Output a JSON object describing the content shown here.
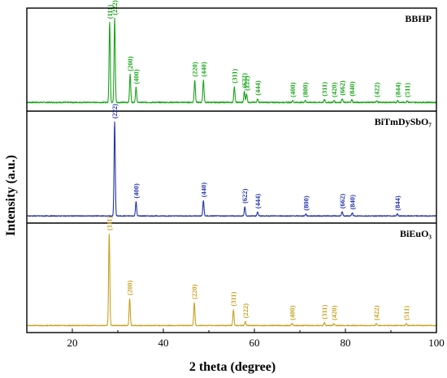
{
  "chart_data": {
    "type": "line",
    "xlabel": "2 theta (degree)",
    "ylabel": "Intensity (a.u.)",
    "xlim": [
      10,
      100
    ],
    "xticks": [
      20,
      40,
      60,
      80,
      100
    ],
    "panels": [
      {
        "name": "BBHP",
        "color": "#1aa51a",
        "baseline": 0.05,
        "noise": 0.012,
        "peaks": [
          {
            "x": 28.2,
            "y": 0.86,
            "label": "(111)"
          },
          {
            "x": 29.3,
            "y": 0.9,
            "label": "(222)"
          },
          {
            "x": 32.7,
            "y": 0.3,
            "label": "(200)"
          },
          {
            "x": 34.0,
            "y": 0.16,
            "label": "(400)"
          },
          {
            "x": 46.9,
            "y": 0.24,
            "label": "(220)"
          },
          {
            "x": 48.8,
            "y": 0.24,
            "label": "(440)"
          },
          {
            "x": 55.6,
            "y": 0.17,
            "label": "(311)"
          },
          {
            "x": 57.8,
            "y": 0.12,
            "label": "(622)"
          },
          {
            "x": 58.3,
            "y": 0.09,
            "label": "(222)"
          },
          {
            "x": 60.7,
            "y": 0.04,
            "label": "(444)"
          },
          {
            "x": 68.4,
            "y": 0.02,
            "label": "(400)"
          },
          {
            "x": 71.2,
            "y": 0.02,
            "label": "(800)"
          },
          {
            "x": 75.4,
            "y": 0.03,
            "label": "(311)"
          },
          {
            "x": 77.5,
            "y": 0.02,
            "label": "(420)"
          },
          {
            "x": 79.3,
            "y": 0.04,
            "label": "(662)"
          },
          {
            "x": 81.4,
            "y": 0.03,
            "label": "(840)"
          },
          {
            "x": 86.9,
            "y": 0.02,
            "label": "(422)"
          },
          {
            "x": 91.5,
            "y": 0.02,
            "label": "(844)"
          },
          {
            "x": 93.6,
            "y": 0.02,
            "label": "(511)"
          }
        ]
      },
      {
        "name": "BiTmDySbO₇",
        "color": "#2233aa",
        "baseline": 0.03,
        "noise": 0.008,
        "peaks": [
          {
            "x": 29.3,
            "y": 0.92,
            "label": "(222)"
          },
          {
            "x": 34.0,
            "y": 0.14,
            "label": "(400)"
          },
          {
            "x": 48.8,
            "y": 0.15,
            "label": "(440)"
          },
          {
            "x": 57.9,
            "y": 0.09,
            "label": "(622)"
          },
          {
            "x": 60.7,
            "y": 0.04,
            "label": "(444)"
          },
          {
            "x": 71.3,
            "y": 0.02,
            "label": "(800)"
          },
          {
            "x": 79.3,
            "y": 0.04,
            "label": "(662)"
          },
          {
            "x": 81.5,
            "y": 0.03,
            "label": "(840)"
          },
          {
            "x": 91.4,
            "y": 0.02,
            "label": "(844)"
          }
        ]
      },
      {
        "name": "BiEuO₃",
        "color": "#c8a020",
        "baseline": 0.03,
        "noise": 0.008,
        "peaks": [
          {
            "x": 28.1,
            "y": 0.92,
            "label": "(111)"
          },
          {
            "x": 32.6,
            "y": 0.27,
            "label": "(200)"
          },
          {
            "x": 46.8,
            "y": 0.23,
            "label": "(220)"
          },
          {
            "x": 55.4,
            "y": 0.16,
            "label": "(311)"
          },
          {
            "x": 58.0,
            "y": 0.04,
            "label": "(222)"
          },
          {
            "x": 68.3,
            "y": 0.02,
            "label": "(400)"
          },
          {
            "x": 75.4,
            "y": 0.03,
            "label": "(311)"
          },
          {
            "x": 77.5,
            "y": 0.02,
            "label": "(420)"
          },
          {
            "x": 86.8,
            "y": 0.02,
            "label": "(422)"
          },
          {
            "x": 93.4,
            "y": 0.02,
            "label": "(511)"
          }
        ]
      }
    ]
  }
}
